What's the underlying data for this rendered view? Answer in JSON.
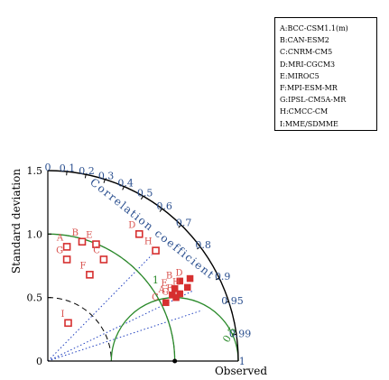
{
  "chart_data": {
    "type": "taylor",
    "ylabel": "Standard deviation",
    "xlabel": "Observed",
    "arc_label": "Correlation coefficient",
    "std_ticks": [
      "0",
      "0.5",
      "1.0",
      "1.5"
    ],
    "std_range": [
      0,
      1.5
    ],
    "reference_std": 1.0,
    "correlation_ticks": [
      "0",
      "0.1",
      "0.2",
      "0.3",
      "0.4",
      "0.5",
      "0.6",
      "0.7",
      "0.8",
      "0.9",
      "0.95",
      "0.99",
      "1"
    ],
    "std_arc_labels": [
      "1"
    ],
    "rms_arc_labels": [
      "0.5"
    ],
    "models": [
      {
        "letter": "A",
        "name": "BCC-CSM1.1(m)"
      },
      {
        "letter": "B",
        "name": "CAN-ESM2"
      },
      {
        "letter": "C",
        "name": "CNRM-CM5"
      },
      {
        "letter": "D",
        "name": "MRI-CGCM3"
      },
      {
        "letter": "E",
        "name": "MIROC5"
      },
      {
        "letter": "F",
        "name": "MPI-ESM-MR"
      },
      {
        "letter": "G",
        "name": "IPSL-CM5A-MR"
      },
      {
        "letter": "H",
        "name": "CMCC-CM"
      },
      {
        "letter": "I",
        "name": "MME/SDMME"
      }
    ],
    "series": [
      {
        "marker": "hollow-square",
        "points": [
          {
            "label": "A",
            "x": 0.15,
            "y": 0.9
          },
          {
            "label": "B",
            "x": 0.27,
            "y": 0.94
          },
          {
            "label": "E",
            "x": 0.38,
            "y": 0.92
          },
          {
            "label": "C",
            "x": 0.44,
            "y": 0.8
          },
          {
            "label": "G",
            "x": 0.15,
            "y": 0.8
          },
          {
            "label": "F",
            "x": 0.33,
            "y": 0.68
          },
          {
            "label": "D",
            "x": 0.72,
            "y": 1.0
          },
          {
            "label": "H",
            "x": 0.85,
            "y": 0.87
          },
          {
            "label": "I",
            "x": 0.16,
            "y": 0.3
          }
        ]
      },
      {
        "marker": "filled-square",
        "points": [
          {
            "label": "D",
            "x": 1.12,
            "y": 0.65
          },
          {
            "label": "B",
            "x": 1.04,
            "y": 0.63
          },
          {
            "label": "E",
            "x": 1.0,
            "y": 0.57
          },
          {
            "label": "H",
            "x": 1.1,
            "y": 0.58
          },
          {
            "label": "F",
            "x": 1.04,
            "y": 0.53
          },
          {
            "label": "A",
            "x": 0.98,
            "y": 0.52
          },
          {
            "label": "C",
            "x": 0.93,
            "y": 0.46
          },
          {
            "label": "G",
            "x": 1.01,
            "y": 0.5
          }
        ]
      }
    ]
  },
  "legend": {
    "entries": [
      "A:BCC-CSM1.1(m)",
      "B:CAN-ESM2",
      "C:CNRM-CM5",
      "D:MRI-CGCM3",
      "E:MIROC5",
      "F:MPI-ESM-MR",
      "G:IPSL-CM5A-MR",
      "H:CMCC-CM",
      "I:MME/SDMME"
    ]
  },
  "colors": {
    "axis": "#000000",
    "correlation_text": "#2a4f8f",
    "correlation_lines": "#1f3fbf",
    "arcs": "#2a8a2a",
    "markers": "#d62f2f",
    "marker_text": "#d9534f",
    "dashed": "#000000"
  }
}
